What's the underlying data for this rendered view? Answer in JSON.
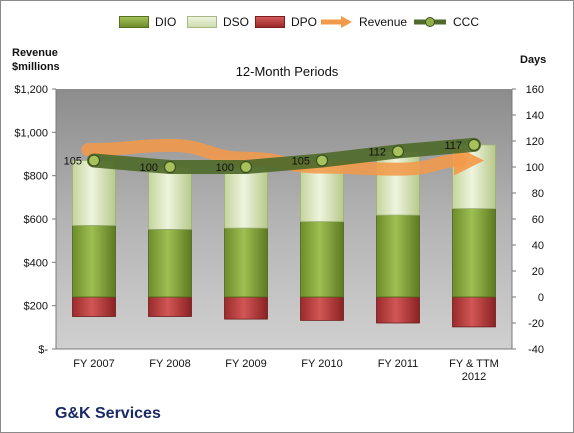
{
  "chart_data": {
    "type": "bar",
    "title": "12-Month Periods",
    "company": "G&K Services",
    "left_axis_title": [
      "Revenue",
      "$millions"
    ],
    "right_axis_title": "Days",
    "categories": [
      [
        "FY 2007"
      ],
      [
        "FY 2008"
      ],
      [
        "FY 2009"
      ],
      [
        "FY 2010"
      ],
      [
        "FY 2011"
      ],
      [
        "FY & TTM",
        "2012"
      ]
    ],
    "left_axis": {
      "ylim": [
        0,
        1200
      ],
      "ticks": [
        "$-",
        "$200",
        "$400",
        "$600",
        "$800",
        "$1,000",
        "$1,200"
      ],
      "tick_values": [
        0,
        200,
        400,
        600,
        800,
        1000,
        1200
      ]
    },
    "right_axis": {
      "ylim": [
        -40,
        160
      ],
      "ticks": [
        "-40",
        "-20",
        "0",
        "20",
        "40",
        "60",
        "80",
        "100",
        "120",
        "140",
        "160"
      ],
      "tick_values": [
        -40,
        -20,
        0,
        20,
        40,
        60,
        80,
        100,
        120,
        140,
        160
      ]
    },
    "series": [
      {
        "name": "DIO",
        "kind": "stacked-bar",
        "color": "#7f9e3a",
        "values": [
          55,
          52,
          53,
          58,
          63,
          68
        ]
      },
      {
        "name": "DSO",
        "kind": "stacked-bar",
        "color": "#d8e4b8",
        "values": [
          50,
          48,
          47,
          47,
          49,
          49
        ]
      },
      {
        "name": "DPO",
        "kind": "negative-bar",
        "color": "#b23a3a",
        "values": [
          -15,
          -15,
          -17,
          -18,
          -20,
          -23
        ]
      },
      {
        "name": "Revenue",
        "kind": "arrow",
        "color": "#f39a4a",
        "values": [
          920,
          940,
          880,
          840,
          830,
          870
        ]
      },
      {
        "name": "CCC",
        "kind": "line",
        "color": "#4f6a2a",
        "values": [
          105,
          100,
          100,
          105,
          112,
          117
        ],
        "labels": [
          "105",
          "100",
          "100",
          "105",
          "112",
          "117"
        ]
      }
    ],
    "legend": "top",
    "grid": false,
    "plot_background": "#a6a6a6"
  }
}
